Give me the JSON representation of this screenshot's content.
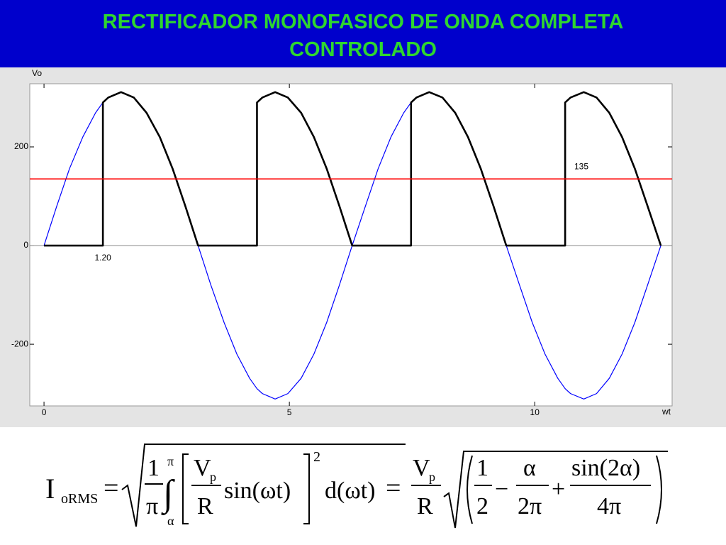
{
  "title_lines": [
    "RECTIFICADOR MONOFASICO DE ONDA COMPLETA",
    "CONTROLADO"
  ],
  "chart_data": {
    "type": "line",
    "y_label": "Vo",
    "x_label": "wt",
    "x": [
      0,
      0.26,
      0.52,
      0.79,
      1.05,
      1.2,
      1.2,
      1.31,
      1.57,
      1.83,
      2.09,
      2.36,
      2.62,
      2.88,
      3.14,
      3.4,
      3.67,
      3.93,
      4.19,
      4.34,
      4.34,
      4.45,
      4.71,
      4.97,
      5.24,
      5.5,
      5.76,
      6.02,
      6.28,
      6.55,
      6.81,
      7.07,
      7.33,
      7.48,
      7.48,
      7.59,
      7.85,
      8.12,
      8.38,
      8.64,
      8.9,
      9.16,
      9.42,
      9.69,
      9.95,
      10.21,
      10.47,
      10.62,
      10.62,
      10.73,
      11,
      11.26,
      11.52,
      11.78,
      12.04,
      12.3,
      12.57
    ],
    "series": [
      {
        "color": "#0000ff",
        "width": 1.2,
        "values": [
          0,
          80,
          156,
          220,
          269,
          290,
          290,
          300,
          311,
          300,
          269,
          220,
          156,
          80,
          0,
          -80,
          -156,
          -220,
          -269,
          -290,
          -290,
          -300,
          -311,
          -300,
          -269,
          -220,
          -156,
          -80,
          0,
          80,
          156,
          220,
          269,
          290,
          290,
          300,
          311,
          300,
          269,
          220,
          156,
          80,
          0,
          -80,
          -156,
          -220,
          -269,
          -290,
          -290,
          -300,
          -311,
          -300,
          -269,
          -220,
          -156,
          -80,
          0
        ]
      },
      {
        "color": "#000000",
        "width": 2.6,
        "values": [
          0,
          0,
          0,
          0,
          0,
          0,
          290,
          300,
          311,
          300,
          269,
          220,
          156,
          80,
          0,
          0,
          0,
          0,
          0,
          0,
          290,
          300,
          311,
          300,
          269,
          220,
          156,
          80,
          0,
          0,
          0,
          0,
          0,
          0,
          290,
          300,
          311,
          300,
          269,
          220,
          156,
          80,
          0,
          0,
          0,
          0,
          0,
          0,
          290,
          300,
          311,
          300,
          269,
          220,
          156,
          80,
          0
        ]
      }
    ],
    "reference_line": {
      "value": 135,
      "label": "135",
      "color": "#ff0000"
    },
    "firing_angle": {
      "value": 1.2,
      "label": "1.20"
    },
    "xlim": [
      -0.29,
      12.8
    ],
    "ylim": [
      -325,
      328
    ],
    "xticks": [
      0,
      5,
      10
    ],
    "yticks": [
      -200,
      0,
      200
    ],
    "zero_line": true
  },
  "formula": {
    "lhs": "I",
    "lhs_sub": "oRMS",
    "eq1": "=",
    "one1": "1",
    "pi1": "π",
    "integral": "∫",
    "int_hi": "π",
    "int_lo": "α",
    "vp1": "V",
    "vp1_sub": "p",
    "r1": "R",
    "sin": "sin(ωt)",
    "power": "2",
    "dwt": "d(ωt)",
    "eq2": "=",
    "vp2": "V",
    "vp2_sub": "p",
    "r2": "R",
    "one2": "1",
    "two": "2",
    "minus": "−",
    "alpha": "α",
    "twopi": "2π",
    "plus": "+",
    "sin2": "sin(2α)",
    "fourpi": "4π"
  }
}
